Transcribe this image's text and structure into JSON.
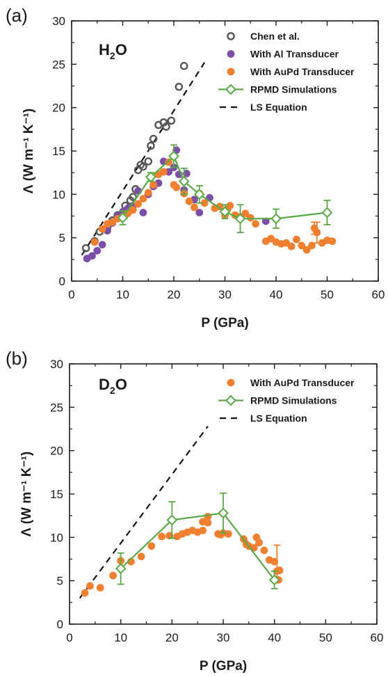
{
  "colors": {
    "chen": "#555555",
    "al": "#7b4fa8",
    "aupd": "#f08030",
    "rpmd": "#5aa845",
    "ls": "#111111"
  },
  "chart_data": [
    {
      "type": "scatter",
      "panel_label": "(a)",
      "title_main": "H",
      "title_sub": "2",
      "title_end": "O",
      "xlabel": "P (GPa)",
      "ylabel": "Λ (W m⁻¹ K⁻¹)",
      "xlim": [
        0,
        60
      ],
      "ylim": [
        0,
        30
      ],
      "xticks": [
        "0",
        "10",
        "20",
        "30",
        "40",
        "50",
        "60"
      ],
      "yticks": [
        "0",
        "5",
        "10",
        "15",
        "20",
        "25",
        "30"
      ],
      "grid": false,
      "legend_position": "top-right",
      "series": [
        {
          "name": "Chen et al.",
          "marker": "open-circle",
          "color_key": "chen",
          "points": [
            [
              2.8,
              3.8
            ],
            [
              4.5,
              4.6
            ],
            [
              5.5,
              5.7
            ],
            [
              7,
              6.2
            ],
            [
              8,
              7
            ],
            [
              9,
              7.6
            ],
            [
              10.5,
              8.7
            ],
            [
              11.5,
              9.3
            ],
            [
              12,
              9.7
            ],
            [
              12.5,
              10.6
            ],
            [
              13,
              12.8
            ],
            [
              13.5,
              13.4
            ],
            [
              14,
              13.2
            ],
            [
              15,
              13.8
            ],
            [
              15.5,
              15.6
            ],
            [
              16,
              16.4
            ],
            [
              17,
              18
            ],
            [
              18,
              18.3
            ],
            [
              18.5,
              17.8
            ],
            [
              19.5,
              18.5
            ],
            [
              21,
              22.4
            ],
            [
              22,
              24.8
            ]
          ]
        },
        {
          "name": "With Al Transducer",
          "marker": "filled-circle",
          "color_key": "al",
          "points": [
            [
              3,
              2.6
            ],
            [
              4,
              2.9
            ],
            [
              5,
              3.5
            ],
            [
              6,
              4.2
            ],
            [
              7,
              5.8
            ],
            [
              8,
              6.7
            ],
            [
              9,
              7.5
            ],
            [
              10,
              8
            ],
            [
              11,
              8.4
            ],
            [
              12,
              8.6
            ],
            [
              13,
              10.4
            ],
            [
              14,
              7.9
            ],
            [
              15,
              10
            ],
            [
              16,
              10.9
            ],
            [
              17,
              11.3
            ],
            [
              18,
              13.8
            ],
            [
              19,
              12.6
            ],
            [
              20,
              13.1
            ],
            [
              20.5,
              15.1
            ],
            [
              21,
              12.3
            ],
            [
              22,
              10.5
            ],
            [
              22.5,
              12.4
            ],
            [
              24,
              9.4
            ],
            [
              25,
              7.9
            ],
            [
              27,
              9.6
            ],
            [
              38,
              6.9
            ]
          ]
        },
        {
          "name": "With AuPd Transducer",
          "marker": "filled-circle",
          "color_key": "aupd",
          "points": [
            [
              4.5,
              4.5
            ],
            [
              6,
              6
            ],
            [
              7,
              6.6
            ],
            [
              8,
              6.8
            ],
            [
              9,
              7.2
            ],
            [
              10,
              7.4
            ],
            [
              11,
              7.8
            ],
            [
              12,
              8.2
            ],
            [
              13,
              8.9
            ],
            [
              14,
              9.5
            ],
            [
              15,
              10.2
            ],
            [
              16,
              11.1
            ],
            [
              17,
              12.3
            ],
            [
              18,
              12.6
            ],
            [
              19,
              13.7
            ],
            [
              20,
              11.1
            ],
            [
              20.5,
              10.8
            ],
            [
              22,
              10.1
            ],
            [
              23,
              9.2
            ],
            [
              24,
              8.5
            ],
            [
              25,
              10.1
            ],
            [
              26,
              9
            ],
            [
              28,
              8.4
            ],
            [
              29,
              8.6
            ],
            [
              30,
              7.6
            ],
            [
              30.5,
              8.3
            ],
            [
              31,
              8.7
            ],
            [
              32,
              7.6
            ],
            [
              33,
              7.4
            ],
            [
              34,
              7.8
            ],
            [
              35,
              7.3
            ],
            [
              36,
              6.6
            ],
            [
              38,
              4.6
            ],
            [
              39,
              4.9
            ],
            [
              40,
              4.5
            ],
            [
              41,
              4.3
            ],
            [
              42,
              4.4
            ],
            [
              43,
              4
            ],
            [
              44,
              4.8
            ],
            [
              45,
              4.1
            ],
            [
              46,
              3.6
            ],
            [
              47,
              4.1
            ],
            [
              47.5,
              6.1
            ],
            [
              48,
              5.6
            ],
            [
              49,
              4.4
            ],
            [
              50,
              4.7
            ],
            [
              51,
              4.6
            ]
          ],
          "errorbars": [
            [
              47.5,
              6.1,
              0.7
            ],
            [
              48,
              5.6,
              1.2
            ]
          ]
        },
        {
          "name": "RPMD Simulations",
          "marker": "open-diamond-line",
          "color_key": "rpmd",
          "points": [
            [
              10,
              7.3
            ],
            [
              15.5,
              12
            ],
            [
              20,
              14.4
            ],
            [
              22,
              11.5
            ],
            [
              25,
              10
            ],
            [
              30,
              8
            ],
            [
              33,
              7.2
            ],
            [
              40,
              7.2
            ],
            [
              50,
              7.9
            ]
          ],
          "errorbars": [
            [
              10,
              7.3,
              0.8
            ],
            [
              15.5,
              12,
              0.5
            ],
            [
              20,
              14.4,
              1.3
            ],
            [
              22,
              11.5,
              1.5
            ],
            [
              25,
              10,
              1
            ],
            [
              30,
              8,
              0.8
            ],
            [
              33,
              7.2,
              1.6
            ],
            [
              40,
              7.2,
              1.1
            ],
            [
              50,
              7.9,
              1.4
            ]
          ]
        },
        {
          "name": "LS Equation",
          "marker": "dashed-line",
          "color_key": "ls",
          "points": [
            [
              2,
              3
            ],
            [
              26,
              25.2
            ]
          ]
        }
      ]
    },
    {
      "type": "scatter",
      "panel_label": "(b)",
      "title_main": "D",
      "title_sub": "2",
      "title_end": "O",
      "xlabel": "P (GPa)",
      "ylabel": "Λ (W m⁻¹ K⁻¹)",
      "xlim": [
        0,
        60
      ],
      "ylim": [
        0,
        30
      ],
      "xticks": [
        "0",
        "10",
        "20",
        "30",
        "40",
        "50",
        "60"
      ],
      "yticks": [
        "0",
        "5",
        "10",
        "15",
        "20",
        "25",
        "30"
      ],
      "grid": false,
      "legend_position": "top-right",
      "series": [
        {
          "name": "With AuPd Transducer",
          "marker": "filled-circle",
          "color_key": "aupd",
          "points": [
            [
              3,
              3.6
            ],
            [
              4,
              4.4
            ],
            [
              6,
              4.2
            ],
            [
              8.5,
              5.6
            ],
            [
              10,
              7.3
            ],
            [
              12,
              7.2
            ],
            [
              14,
              7.8
            ],
            [
              16,
              9
            ],
            [
              18,
              10.1
            ],
            [
              19.5,
              10.2
            ],
            [
              21,
              10.1
            ],
            [
              22,
              10.4
            ],
            [
              23,
              10.6
            ],
            [
              24,
              10.8
            ],
            [
              25,
              10.6
            ],
            [
              26,
              10.8
            ],
            [
              26,
              11.8
            ],
            [
              27,
              11.7
            ],
            [
              27,
              12.4
            ],
            [
              29,
              10.4
            ],
            [
              29.5,
              10.3
            ],
            [
              30,
              10.5
            ],
            [
              31,
              10.4
            ],
            [
              34,
              9.8
            ],
            [
              34.5,
              9.2
            ],
            [
              35,
              9
            ],
            [
              36,
              8.8
            ],
            [
              36.5,
              10
            ],
            [
              37,
              9.4
            ],
            [
              38,
              8.5
            ],
            [
              39,
              7.4
            ],
            [
              40,
              7.2
            ],
            [
              40.5,
              6.1
            ],
            [
              40.8,
              5.1
            ],
            [
              41,
              6.2
            ]
          ],
          "errorbars": [
            [
              40.5,
              7.2,
              1.9
            ]
          ]
        },
        {
          "name": "RPMD Simulations",
          "marker": "open-diamond-line",
          "color_key": "rpmd",
          "points": [
            [
              10,
              6.4
            ],
            [
              20,
              12
            ],
            [
              30,
              12.8
            ],
            [
              40,
              5.1
            ]
          ],
          "errorbars": [
            [
              10,
              6.4,
              1.8
            ],
            [
              20,
              12,
              2.1
            ],
            [
              30,
              12.8,
              2.3
            ],
            [
              40,
              5.1,
              1
            ]
          ]
        },
        {
          "name": "LS Equation",
          "marker": "dashed-line",
          "color_key": "ls",
          "points": [
            [
              2,
              3
            ],
            [
              27,
              22.8
            ]
          ]
        }
      ]
    }
  ]
}
